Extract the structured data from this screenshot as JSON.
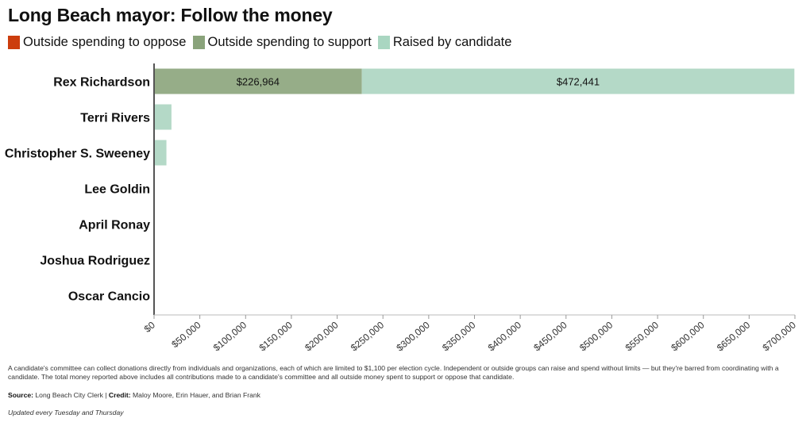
{
  "title": "Long Beach mayor: Follow the money",
  "legend": [
    {
      "label": "Outside spending to oppose",
      "color": "#cc3d0e"
    },
    {
      "label": "Outside spending to support",
      "color": "#8aa37b"
    },
    {
      "label": "Raised by candidate",
      "color": "#a9d6c1"
    }
  ],
  "chart_data": {
    "type": "bar",
    "orientation": "horizontal",
    "stacked": true,
    "categories": [
      "Rex Richardson",
      "Terri Rivers",
      "Christopher S. Sweeney",
      "Lee Goldin",
      "April Ronay",
      "Joshua Rodriguez",
      "Oscar Cancio"
    ],
    "series": [
      {
        "name": "Outside spending to oppose",
        "color": "#cc3d0e",
        "values": [
          0,
          0,
          0,
          0,
          0,
          0,
          0
        ]
      },
      {
        "name": "Outside spending to support",
        "color": "#96ad88",
        "values": [
          226964,
          0,
          0,
          0,
          0,
          0,
          0
        ]
      },
      {
        "name": "Raised by candidate",
        "color": "#b4d9c7",
        "values": [
          472441,
          19000,
          13500,
          0,
          0,
          0,
          0
        ]
      }
    ],
    "data_labels": [
      {
        "category": "Rex Richardson",
        "series": "Outside spending to support",
        "text": "$226,964"
      },
      {
        "category": "Rex Richardson",
        "series": "Raised by candidate",
        "text": "$472,441"
      }
    ],
    "xlim": [
      0,
      700000
    ],
    "xticks": [
      0,
      50000,
      100000,
      150000,
      200000,
      250000,
      300000,
      350000,
      400000,
      450000,
      500000,
      550000,
      600000,
      650000,
      700000
    ],
    "xtick_labels": [
      "$0",
      "$50,000",
      "$100,000",
      "$150,000",
      "$200,000",
      "$250,000",
      "$300,000",
      "$350,000",
      "$400,000",
      "$450,000",
      "$500,000",
      "$550,000",
      "$600,000",
      "$650,000",
      "$700,000"
    ],
    "grid": false
  },
  "note": "A candidate's committee can collect donations directly from individuals and organizations, each of which are limited to $1,100 per election cycle. Independent or outside groups can raise and spend without limits — but they're barred from coordinating with a candidate. The total money reported above includes all contributions made to a candidate's committee and all outside money spent to support or oppose that candidate.",
  "source": {
    "source_label": "Source:",
    "source_text": "Long Beach City Clerk",
    "separator": "|",
    "credit_label": "Credit:",
    "credit_text": "Maloy Moore, Erin Hauer, and Brian Frank"
  },
  "updated": "Updated every Tuesday and Thursday"
}
